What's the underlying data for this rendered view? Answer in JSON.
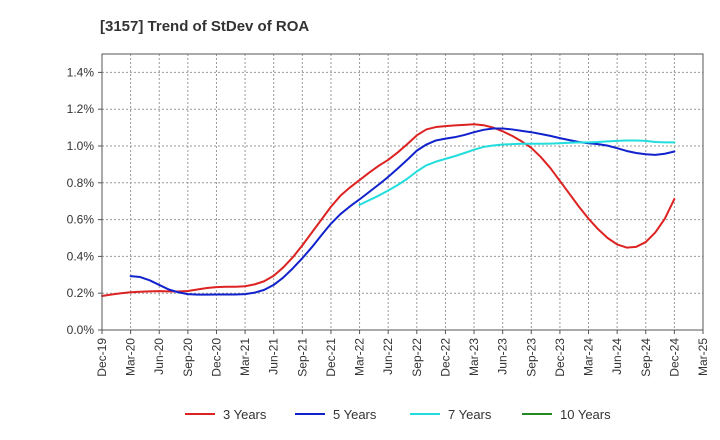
{
  "chart_data": {
    "type": "line",
    "title": "[3157]  Trend of StDev of ROA",
    "xlabel": "",
    "ylabel": "",
    "x_ticks": [
      "Dec-19",
      "Mar-20",
      "Jun-20",
      "Sep-20",
      "Dec-20",
      "Mar-21",
      "Jun-21",
      "Sep-21",
      "Dec-21",
      "Mar-22",
      "Jun-22",
      "Sep-22",
      "Dec-22",
      "Mar-23",
      "Jun-23",
      "Sep-23",
      "Dec-23",
      "Mar-24",
      "Jun-24",
      "Sep-24",
      "Dec-24",
      "Mar-25"
    ],
    "y_ticks": [
      "0.0%",
      "0.2%",
      "0.4%",
      "0.6%",
      "0.8%",
      "1.0%",
      "1.2%",
      "1.4%"
    ],
    "ylim": [
      0,
      1.5
    ],
    "y_unit": "%",
    "grid": true,
    "legend_position": "bottom",
    "series": [
      {
        "name": "3 Years",
        "color": "#dd2222",
        "x": [
          "Dec-19",
          "Jan-20",
          "Feb-20",
          "Mar-20",
          "Apr-20",
          "May-20",
          "Jun-20",
          "Jul-20",
          "Aug-20",
          "Sep-20",
          "Oct-20",
          "Nov-20",
          "Dec-20",
          "Jan-21",
          "Feb-21",
          "Mar-21",
          "Apr-21",
          "May-21",
          "Jun-21",
          "Jul-21",
          "Aug-21",
          "Sep-21",
          "Oct-21",
          "Nov-21",
          "Dec-21",
          "Jan-22",
          "Feb-22",
          "Mar-22",
          "Apr-22",
          "May-22",
          "Jun-22",
          "Jul-22",
          "Aug-22",
          "Sep-22",
          "Oct-22",
          "Nov-22",
          "Dec-22",
          "Jan-23",
          "Feb-23",
          "Mar-23",
          "Apr-23",
          "May-23",
          "Jun-23",
          "Jul-23",
          "Aug-23",
          "Sep-23",
          "Oct-23",
          "Nov-23",
          "Dec-23",
          "Jan-24",
          "Feb-24",
          "Mar-24",
          "Apr-24",
          "May-24",
          "Jun-24",
          "Jul-24",
          "Aug-24",
          "Sep-24",
          "Oct-24",
          "Nov-24",
          "Dec-24"
        ],
        "values": [
          0.185,
          0.193,
          0.2,
          0.205,
          0.208,
          0.21,
          0.211,
          0.21,
          0.209,
          0.212,
          0.22,
          0.228,
          0.233,
          0.235,
          0.235,
          0.238,
          0.248,
          0.265,
          0.295,
          0.34,
          0.395,
          0.46,
          0.53,
          0.6,
          0.67,
          0.73,
          0.775,
          0.815,
          0.855,
          0.892,
          0.925,
          0.965,
          1.01,
          1.058,
          1.09,
          1.103,
          1.108,
          1.112,
          1.115,
          1.118,
          1.113,
          1.1,
          1.08,
          1.055,
          1.025,
          0.99,
          0.94,
          0.88,
          0.81,
          0.74,
          0.67,
          0.605,
          0.548,
          0.5,
          0.465,
          0.448,
          0.452,
          0.478,
          0.53,
          0.605,
          0.712
        ]
      },
      {
        "name": "5 Years",
        "color": "#1122cc",
        "x": [
          "Mar-20",
          "Apr-20",
          "May-20",
          "Jun-20",
          "Jul-20",
          "Aug-20",
          "Sep-20",
          "Oct-20",
          "Nov-20",
          "Dec-20",
          "Jan-21",
          "Feb-21",
          "Mar-21",
          "Apr-21",
          "May-21",
          "Jun-21",
          "Jul-21",
          "Aug-21",
          "Sep-21",
          "Oct-21",
          "Nov-21",
          "Dec-21",
          "Jan-22",
          "Feb-22",
          "Mar-22",
          "Apr-22",
          "May-22",
          "Jun-22",
          "Jul-22",
          "Aug-22",
          "Sep-22",
          "Oct-22",
          "Nov-22",
          "Dec-22",
          "Jan-23",
          "Feb-23",
          "Mar-23",
          "Apr-23",
          "May-23",
          "Jun-23",
          "Jul-23",
          "Aug-23",
          "Sep-23",
          "Oct-23",
          "Nov-23",
          "Dec-23",
          "Jan-24",
          "Feb-24",
          "Mar-24",
          "Apr-24",
          "May-24",
          "Jun-24",
          "Jul-24",
          "Aug-24",
          "Sep-24",
          "Oct-24",
          "Nov-24",
          "Dec-24"
        ],
        "values": [
          0.293,
          0.288,
          0.27,
          0.245,
          0.22,
          0.205,
          0.195,
          0.192,
          0.192,
          0.193,
          0.193,
          0.193,
          0.195,
          0.203,
          0.218,
          0.245,
          0.285,
          0.335,
          0.39,
          0.45,
          0.515,
          0.578,
          0.63,
          0.672,
          0.71,
          0.75,
          0.79,
          0.832,
          0.878,
          0.925,
          0.975,
          1.008,
          1.03,
          1.04,
          1.048,
          1.06,
          1.075,
          1.088,
          1.095,
          1.095,
          1.09,
          1.082,
          1.075,
          1.065,
          1.055,
          1.043,
          1.032,
          1.022,
          1.015,
          1.01,
          1.002,
          0.988,
          0.973,
          0.962,
          0.955,
          0.952,
          0.958,
          0.97
        ]
      },
      {
        "name": "7 Years",
        "color": "#22dddd",
        "x": [
          "Mar-22",
          "Apr-22",
          "May-22",
          "Jun-22",
          "Jul-22",
          "Aug-22",
          "Sep-22",
          "Oct-22",
          "Nov-22",
          "Dec-22",
          "Jan-23",
          "Feb-23",
          "Mar-23",
          "Apr-23",
          "May-23",
          "Jun-23",
          "Jul-23",
          "Aug-23",
          "Sep-23",
          "Oct-23",
          "Nov-23",
          "Dec-23",
          "Jan-24",
          "Feb-24",
          "Mar-24",
          "Apr-24",
          "May-24",
          "Jun-24",
          "Jul-24",
          "Aug-24",
          "Sep-24",
          "Oct-24",
          "Nov-24",
          "Dec-24"
        ],
        "values": [
          0.68,
          0.705,
          0.73,
          0.758,
          0.788,
          0.822,
          0.862,
          0.895,
          0.915,
          0.93,
          0.945,
          0.962,
          0.98,
          0.995,
          1.003,
          1.008,
          1.01,
          1.012,
          1.012,
          1.012,
          1.013,
          1.015,
          1.018,
          1.02,
          1.02,
          1.022,
          1.025,
          1.028,
          1.03,
          1.03,
          1.028,
          1.022,
          1.02,
          1.02
        ]
      },
      {
        "name": "10 Years",
        "color": "#228822",
        "x": [],
        "values": []
      }
    ]
  }
}
